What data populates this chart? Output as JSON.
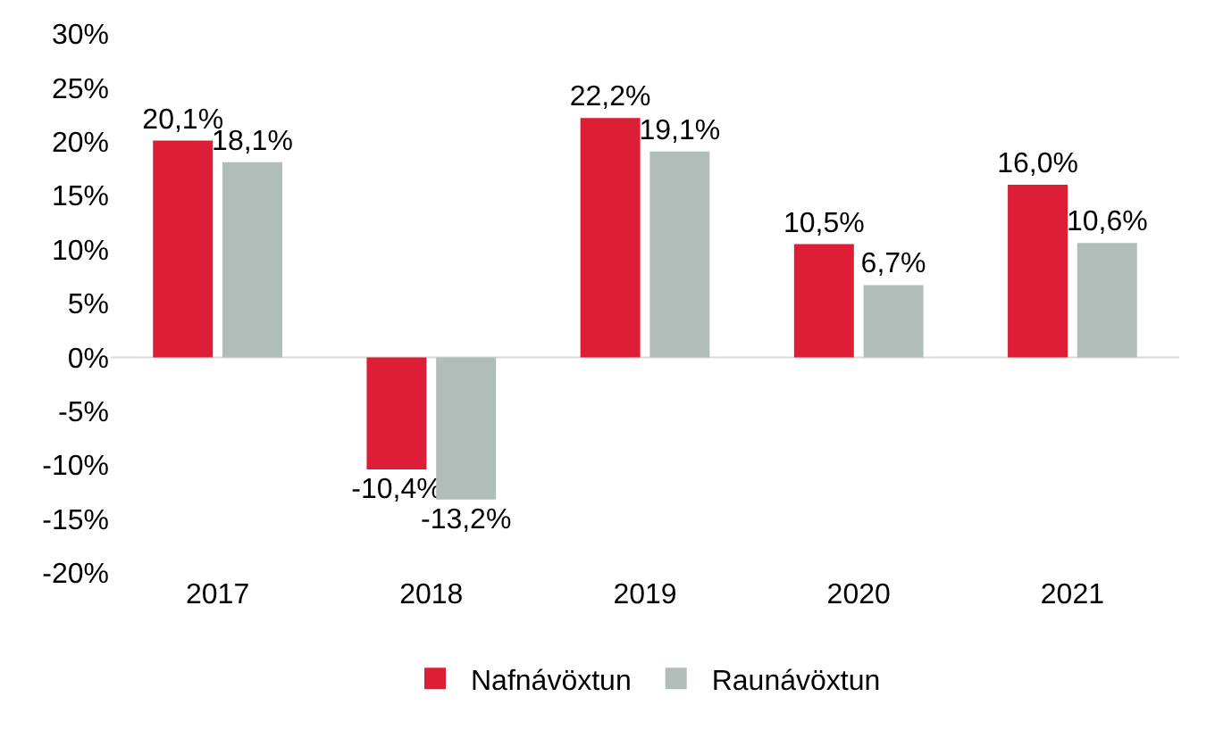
{
  "chart_data": {
    "type": "bar",
    "categories": [
      "2017",
      "2018",
      "2019",
      "2020",
      "2021"
    ],
    "series": [
      {
        "name": "Nafnávöxtun",
        "color": "#dc1f36",
        "values": [
          20.1,
          -10.4,
          22.2,
          10.5,
          16.0
        ],
        "value_labels": [
          "20,1%",
          "-10,4%",
          "22,2%",
          "10,5%",
          "16,0%"
        ]
      },
      {
        "name": "Raunávöxtun",
        "color": "#b1bdb8",
        "values": [
          18.1,
          -13.2,
          19.1,
          6.7,
          10.6
        ],
        "value_labels": [
          "18,1%",
          "-13,2%",
          "19,1%",
          "6,7%",
          "10,6%"
        ]
      }
    ],
    "ylim": [
      -20,
      30
    ],
    "yticks": [
      {
        "value": -20,
        "label": "-20%"
      },
      {
        "value": -15,
        "label": "-15%"
      },
      {
        "value": -10,
        "label": "-10%"
      },
      {
        "value": -5,
        "label": "-5%"
      },
      {
        "value": 0,
        "label": "0%"
      },
      {
        "value": 5,
        "label": "5%"
      },
      {
        "value": 10,
        "label": "10%"
      },
      {
        "value": 15,
        "label": "15%"
      },
      {
        "value": 20,
        "label": "20%"
      },
      {
        "value": 25,
        "label": "25%"
      },
      {
        "value": 30,
        "label": "30%"
      }
    ],
    "grid": false,
    "ref_lines": [
      {
        "axis": "y",
        "value": 0,
        "color": "#d9d9d9"
      }
    ],
    "legend": "bottom"
  }
}
